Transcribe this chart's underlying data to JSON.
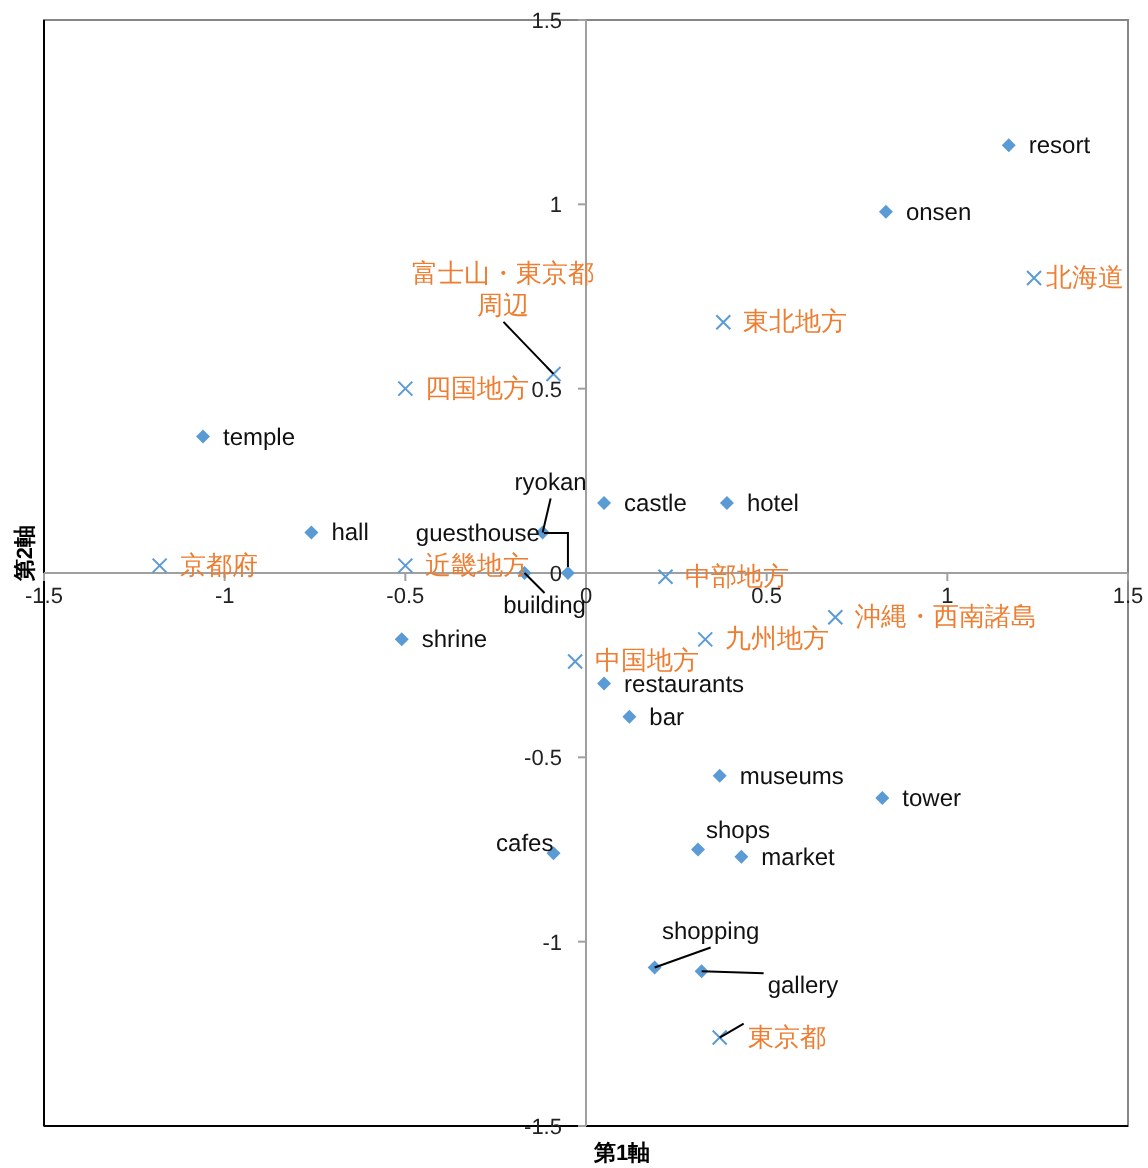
{
  "chart_data": {
    "type": "scatter",
    "xlabel": "第1軸",
    "ylabel": "第2軸",
    "xlim": [
      -1.5,
      1.5
    ],
    "xticks": [
      -1.5,
      -1,
      -0.5,
      0,
      0.5,
      1,
      1.5
    ],
    "ylim": [
      -1.5,
      1.5
    ],
    "yticks": [
      -1.5,
      -1,
      -0.5,
      0,
      0.5,
      1,
      1.5
    ],
    "grid": false,
    "series": [
      {
        "color": "#5b9bd5",
        "marker": "diamond",
        "x": [
          1.17,
          0.83,
          0.05,
          0.39,
          -1.06,
          -0.76,
          -0.12,
          -0.05,
          -0.17,
          -0.51,
          0.05,
          0.12,
          0.37,
          0.82,
          -0.09,
          0.31,
          0.43,
          0.19,
          0.32
        ],
        "values": [
          1.16,
          0.98,
          0.19,
          0.19,
          0.37,
          0.11,
          0.11,
          0.0,
          0.0,
          -0.18,
          -0.3,
          -0.39,
          -0.55,
          -0.61,
          -0.76,
          -0.75,
          -0.77,
          -1.07,
          -1.08
        ]
      },
      {
        "color": "#5b9bd5",
        "marker": "cross",
        "x": [
          1.24,
          0.38,
          -0.09,
          -0.5,
          -1.18,
          -0.5,
          0.22,
          0.69,
          0.33,
          -0.03,
          0.37
        ],
        "values": [
          0.8,
          0.68,
          0.54,
          0.5,
          0.02,
          0.02,
          -0.01,
          -0.12,
          -0.18,
          -0.24,
          -1.26
        ]
      }
    ],
    "annotations": [
      {
        "text": "resort",
        "x": 1.17,
        "y": 1.16
      },
      {
        "text": "onsen",
        "x": 0.83,
        "y": 0.98
      },
      {
        "text": "castle",
        "x": 0.05,
        "y": 0.19
      },
      {
        "text": "hotel",
        "x": 0.39,
        "y": 0.19
      },
      {
        "text": "temple",
        "x": -1.06,
        "y": 0.37
      },
      {
        "text": "hall",
        "x": -0.76,
        "y": 0.11
      },
      {
        "text": "ryokan",
        "x": -0.12,
        "y": 0.11
      },
      {
        "text": "guesthouse",
        "x": -0.05,
        "y": 0.0
      },
      {
        "text": "building",
        "x": -0.17,
        "y": 0.0
      },
      {
        "text": "shrine",
        "x": -0.51,
        "y": -0.18
      },
      {
        "text": "restaurants",
        "x": 0.05,
        "y": -0.3
      },
      {
        "text": "bar",
        "x": 0.12,
        "y": -0.39
      },
      {
        "text": "museums",
        "x": 0.37,
        "y": -0.55
      },
      {
        "text": "tower",
        "x": 0.82,
        "y": -0.61
      },
      {
        "text": "cafes",
        "x": -0.09,
        "y": -0.76
      },
      {
        "text": "shops",
        "x": 0.31,
        "y": -0.75
      },
      {
        "text": "market",
        "x": 0.43,
        "y": -0.77
      },
      {
        "text": "shopping",
        "x": 0.19,
        "y": -1.07
      },
      {
        "text": "gallery",
        "x": 0.32,
        "y": -1.08
      },
      {
        "text": "北海道",
        "x": 1.24,
        "y": 0.8
      },
      {
        "text": "東北地方",
        "x": 0.38,
        "y": 0.68
      },
      {
        "text": "富士山・東京都周辺",
        "x": -0.09,
        "y": 0.54
      },
      {
        "text": "四国地方",
        "x": -0.5,
        "y": 0.5
      },
      {
        "text": "京都府",
        "x": -1.18,
        "y": 0.02
      },
      {
        "text": "近畿地方",
        "x": -0.5,
        "y": 0.02
      },
      {
        "text": "中部地方",
        "x": 0.22,
        "y": -0.01
      },
      {
        "text": "沖縄・西南諸島",
        "x": 0.69,
        "y": -0.12
      },
      {
        "text": "九州地方",
        "x": 0.33,
        "y": -0.18
      },
      {
        "text": "中国地方",
        "x": -0.03,
        "y": -0.24
      },
      {
        "text": "東京都",
        "x": 0.37,
        "y": -1.26
      }
    ]
  }
}
